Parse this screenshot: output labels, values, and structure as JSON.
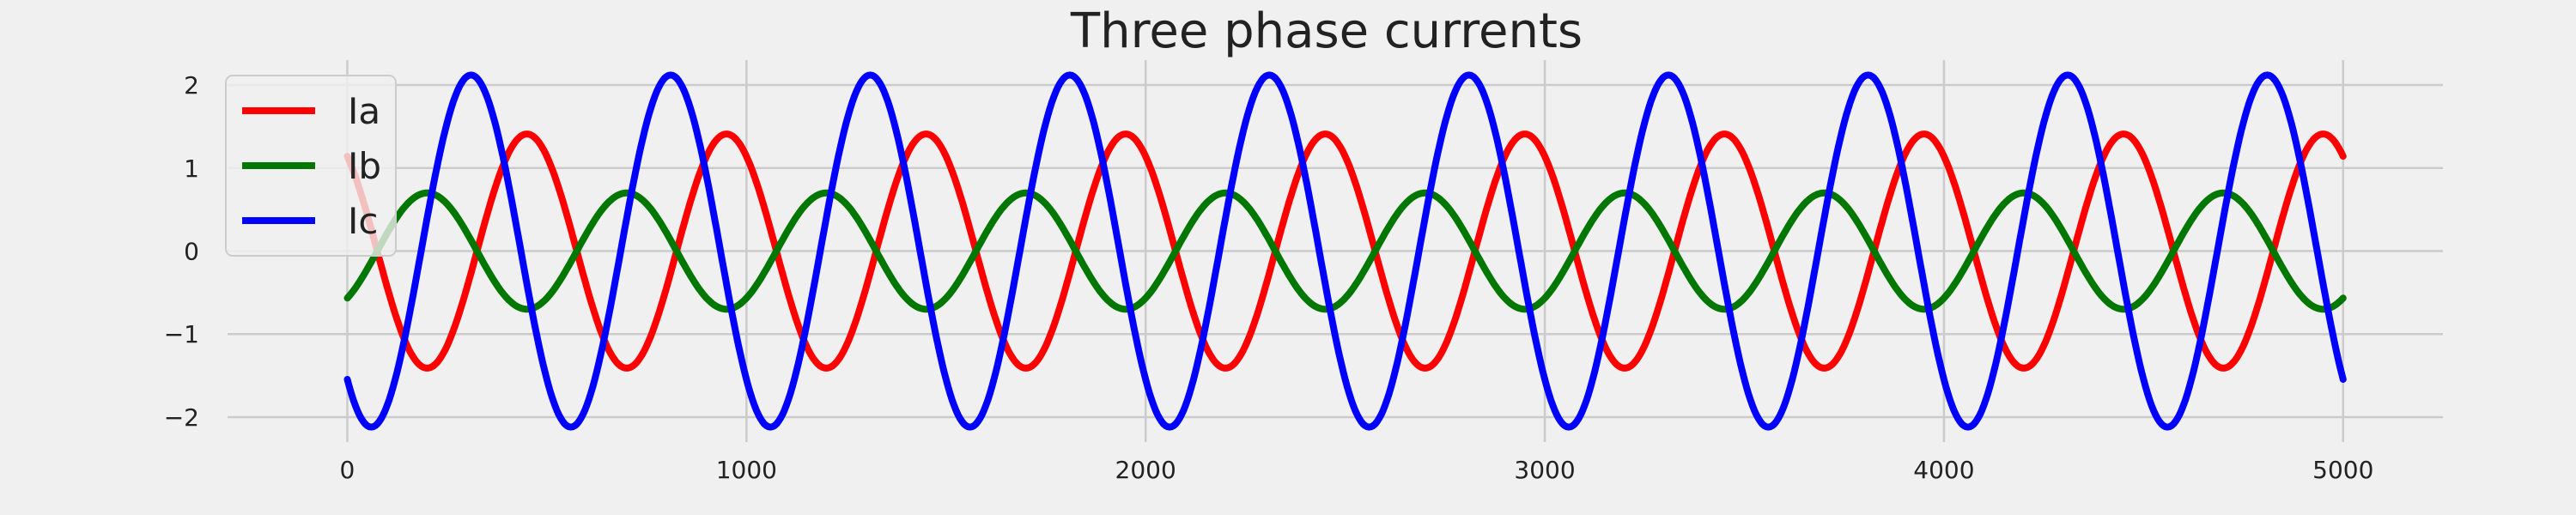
{
  "chart_data": {
    "type": "line",
    "title": "Three phase currents",
    "xlabel": "",
    "ylabel": "",
    "xlim": [
      -300,
      5250
    ],
    "ylim": [
      -2.3,
      2.3
    ],
    "x_ticks": [
      0,
      1000,
      2000,
      3000,
      4000,
      5000
    ],
    "x_tick_labels": [
      "0",
      "1000",
      "2000",
      "3000",
      "4000",
      "5000"
    ],
    "y_ticks": [
      2,
      1,
      0,
      -1,
      -2
    ],
    "y_tick_labels": [
      "2",
      "1",
      "0",
      "−1",
      "−2"
    ],
    "grid": true,
    "legend_position": "upper left",
    "x_range": [
      0,
      5000
    ],
    "period": 500,
    "series": [
      {
        "name": "Ia",
        "color": "#ff0000",
        "amplitude": 1.41,
        "peak_x": [
          450,
          950,
          1450,
          1950,
          2450,
          2950,
          3450,
          3950,
          4450,
          4950
        ],
        "value_at_0": 1.38,
        "value_at_5000": 1.4
      },
      {
        "name": "Ib",
        "color": "#007700",
        "amplitude": 0.7,
        "peak_x": [
          200,
          700,
          1200,
          1700,
          2200,
          2700,
          3200,
          3700,
          4200,
          4700
        ],
        "value_at_0": -0.52,
        "value_at_5000": -0.58
      },
      {
        "name": "Ic",
        "color": "#0000ff",
        "amplitude": 2.12,
        "peak_x": [
          310,
          810,
          1310,
          1810,
          2310,
          2810,
          3310,
          3810,
          4310,
          4810
        ],
        "value_at_0": -1.5,
        "value_at_5000": -1.45
      }
    ]
  }
}
